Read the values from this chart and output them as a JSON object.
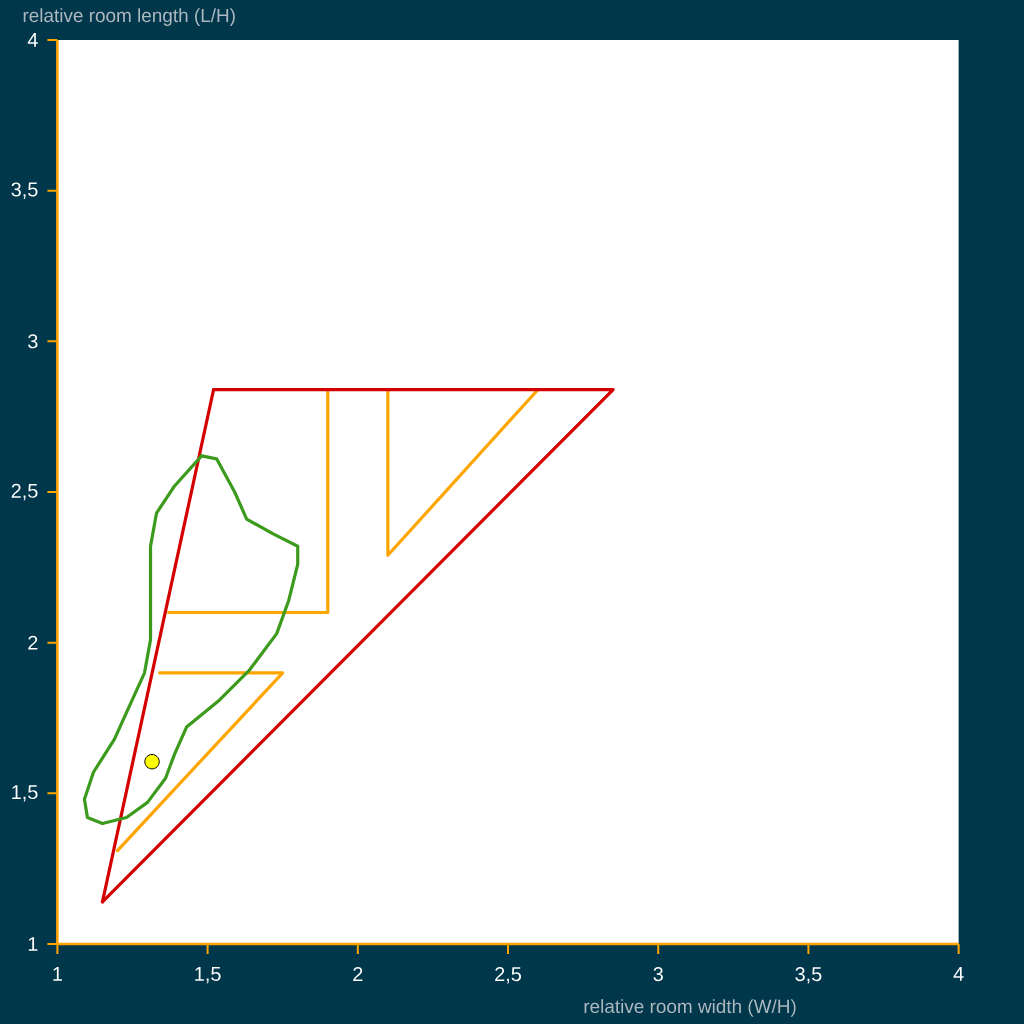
{
  "chart_data": {
    "type": "line",
    "xlabel": "relative room width (W/H)",
    "ylabel": "relative room length (L/H)",
    "xlim": [
      1,
      4
    ],
    "ylim": [
      1,
      4
    ],
    "xticks": [
      1,
      {
        "value": 1.5,
        "label": "1,5"
      },
      2,
      {
        "value": 2.5,
        "label": "2,5"
      },
      3,
      {
        "value": 3.5,
        "label": "3,5"
      },
      4
    ],
    "yticks": [
      1,
      {
        "value": 1.5,
        "label": "1,5"
      },
      2,
      {
        "value": 2.5,
        "label": "2,5"
      },
      3,
      {
        "value": 3.5,
        "label": "3,5"
      },
      4
    ],
    "grid": false,
    "legend": false,
    "series": [
      {
        "color": "#ffa500",
        "x": [
          1.9,
          1.9,
          1.37
        ],
        "values": [
          2.84,
          2.1,
          2.1
        ]
      },
      {
        "color": "#ffa500",
        "x": [
          2.1,
          2.1,
          2.6
        ],
        "values": [
          2.84,
          2.29,
          2.84
        ]
      },
      {
        "color": "#ffa500",
        "x": [
          1.34,
          1.75,
          1.2
        ],
        "values": [
          1.9,
          1.9,
          1.31
        ]
      },
      {
        "color": "#d40000",
        "x": [
          1.52,
          2.85,
          1.15
        ],
        "values": [
          2.84,
          2.84,
          1.14
        ]
      },
      {
        "color": "#d40000",
        "x": [
          1.15,
          1.52
        ],
        "values": [
          1.14,
          2.84
        ]
      },
      {
        "color": "#3c9a1c",
        "x": [
          1.48,
          1.53,
          1.59,
          1.63,
          1.72,
          1.8,
          1.8,
          1.77,
          1.73,
          1.67,
          1.64,
          1.54,
          1.43,
          1.39,
          1.36,
          1.3,
          1.23,
          1.15
        ],
        "values": [
          2.62,
          2.61,
          2.5,
          2.41,
          2.36,
          2.32,
          2.26,
          2.14,
          2.03,
          1.95,
          1.91,
          1.81,
          1.72,
          1.63,
          1.55,
          1.47,
          1.42,
          1.4
        ]
      },
      {
        "color": "#3c9a1c",
        "x": [
          1.15,
          1.1,
          1.09,
          1.12,
          1.19,
          1.24,
          1.29,
          1.31,
          1.31,
          1.33,
          1.39,
          1.48
        ],
        "values": [
          1.4,
          1.42,
          1.48,
          1.57,
          1.68,
          1.79,
          1.9,
          2.01,
          2.32,
          2.43,
          2.52,
          2.62
        ]
      },
      {
        "type": "scatter",
        "marker": "circle",
        "color": "#ffff00",
        "x": [
          1.315
        ],
        "values": [
          1.605
        ]
      }
    ]
  }
}
